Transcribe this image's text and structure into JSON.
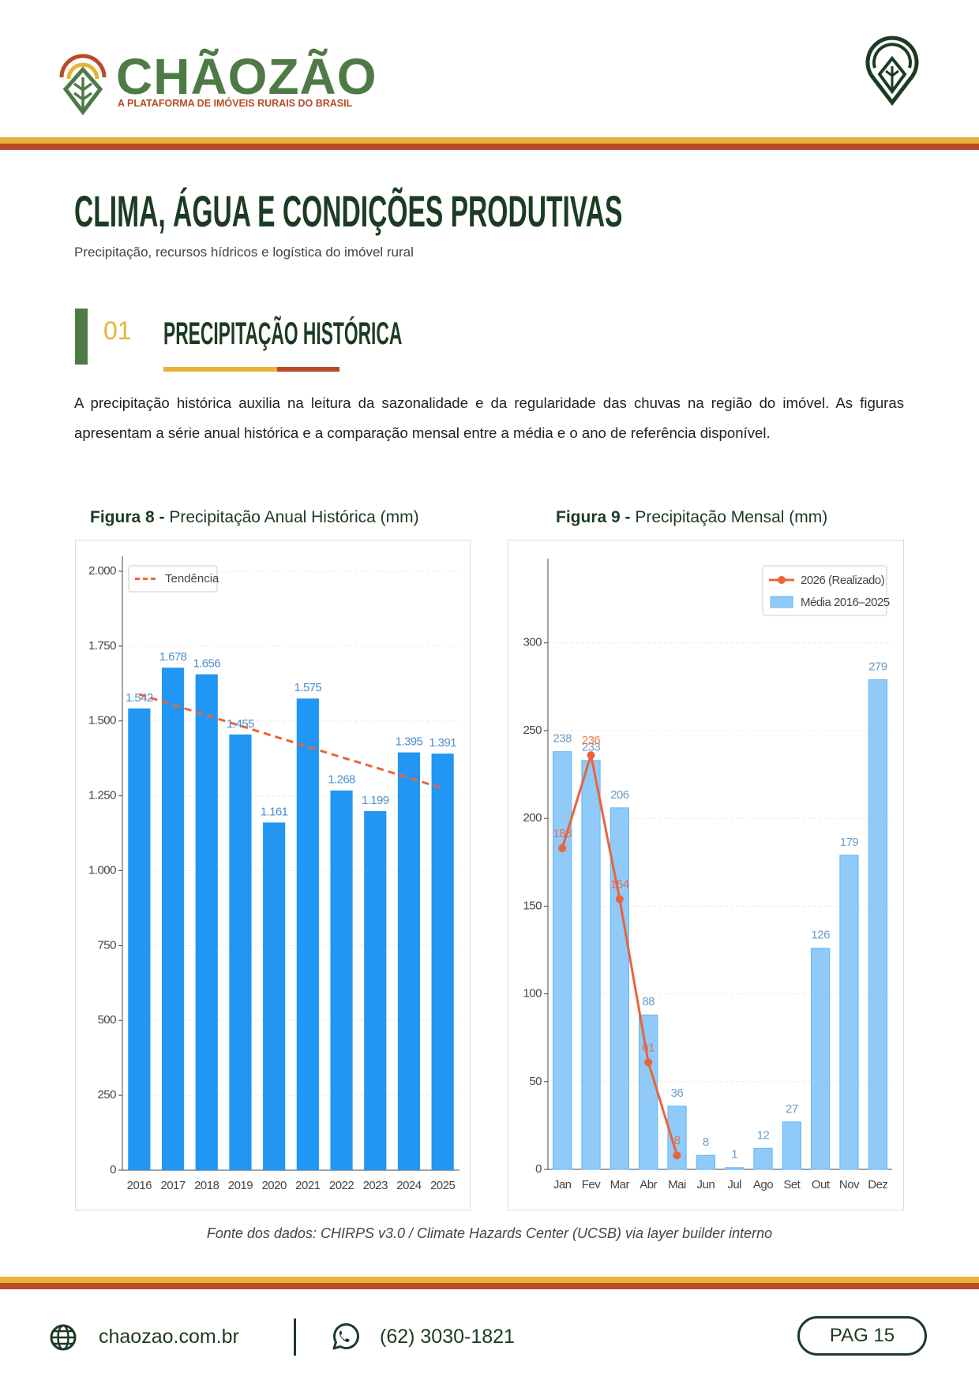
{
  "header": {
    "brand": "CHÃOZÃO",
    "tagline": "A PLATAFORMA DE IMÓVEIS RURAIS DO BRASIL"
  },
  "title": "CLIMA, ÁGUA E CONDIÇÕES PRODUTIVAS",
  "subtitle": "Precipitação, recursos hídricos e logística do imóvel rural",
  "section": {
    "number": "01",
    "heading": "PRECIPITAÇÃO HISTÓRICA",
    "paragraph": "A precipitação histórica auxilia na leitura da sazonalidade e da regularidade das chuvas na região do imóvel. As figuras apresentam a série anual histórica e a comparação mensal entre a média e o ano de referência disponível."
  },
  "figures": [
    {
      "label": "Figura 8 -",
      "caption": "Precipitação Anual Histórica (mm)"
    },
    {
      "label": "Figura 9 -",
      "caption": "Precipitação Mensal (mm)"
    }
  ],
  "chart_data": [
    {
      "type": "bar",
      "categories": [
        "2016",
        "2017",
        "2018",
        "2019",
        "2020",
        "2021",
        "2022",
        "2023",
        "2024",
        "2025"
      ],
      "values": [
        1542,
        1678,
        1656,
        1455,
        1161,
        1575,
        1268,
        1199,
        1395,
        1391
      ],
      "value_labels": [
        "1.542",
        "1.678",
        "1.656",
        "1.455",
        "1.161",
        "1.575",
        "1.268",
        "1.199",
        "1.395",
        "1.391"
      ],
      "color": "#2196f3",
      "trend": {
        "name": "Tendência",
        "color": "#e8643a",
        "values": [
          1589,
          1554,
          1519,
          1484,
          1449,
          1414,
          1379,
          1345,
          1310,
          1275
        ]
      },
      "ylim": [
        0,
        2050
      ],
      "yticks": [
        0,
        250,
        500,
        750,
        {
          "value": 1000,
          "label": "1.000"
        },
        {
          "value": 1250,
          "label": "1.250"
        },
        {
          "value": 1500,
          "label": "1.500"
        },
        {
          "value": 1750,
          "label": "1.750"
        },
        {
          "value": 2000,
          "label": "2.000"
        }
      ],
      "grid": true,
      "legend": "upper-left"
    },
    {
      "type": "combo",
      "categories": [
        "Jan",
        "Fev",
        "Mar",
        "Abr",
        "Mai",
        "Jun",
        "Jul",
        "Ago",
        "Set",
        "Out",
        "Nov",
        "Dez"
      ],
      "series": [
        {
          "name": "2026 (Realizado)",
          "type": "line",
          "color": "#e8643a",
          "values": [
            183,
            236,
            154,
            61,
            8,
            null,
            null,
            null,
            null,
            null,
            null,
            null
          ]
        },
        {
          "name": "Média 2016–2025",
          "type": "bar",
          "color": "#90caf9",
          "values": [
            238,
            233,
            206,
            88,
            36,
            8,
            1,
            12,
            27,
            126,
            179,
            279
          ]
        }
      ],
      "ylim": [
        0,
        348
      ],
      "yticks": [
        0,
        50,
        100,
        150,
        200,
        250,
        300
      ],
      "grid": true,
      "legend": "upper-right"
    }
  ],
  "source": "Fonte dos dados: CHIRPS v3.0 / Climate Hazards Center (UCSB) via layer builder interno",
  "footer": {
    "website": "chaozao.com.br",
    "phone": "(62) 3030-1821",
    "page": "PAG 15"
  }
}
